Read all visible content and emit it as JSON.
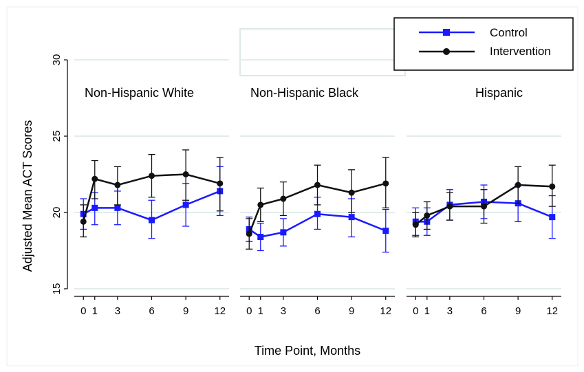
{
  "chart_data": {
    "type": "line",
    "ylabel": "Adjusted Mean ACT Scores",
    "xlabel": "Time Point, Months",
    "ylim": [
      15,
      30
    ],
    "yticks": [
      15,
      20,
      25,
      30
    ],
    "xticks": [
      0,
      1,
      3,
      6,
      9,
      12
    ],
    "xlim": [
      -0.8,
      12.8
    ],
    "grid": true,
    "legend": {
      "placement": "top-right",
      "entries": [
        "Control",
        "Intervention"
      ]
    },
    "colors": {
      "Control": "#1a1aff",
      "Intervention": "#111111"
    },
    "panels": [
      {
        "title": "Non-Hispanic White",
        "series": [
          {
            "name": "Control",
            "x": [
              0,
              1,
              3,
              6,
              9,
              12
            ],
            "values": [
              19.9,
              20.3,
              20.3,
              19.5,
              20.5,
              21.4
            ],
            "lower": [
              18.9,
              19.2,
              19.2,
              18.3,
              19.1,
              19.8
            ],
            "upper": [
              20.9,
              21.3,
              21.4,
              20.8,
              21.9,
              23.0
            ]
          },
          {
            "name": "Intervention",
            "x": [
              0,
              1,
              3,
              6,
              9,
              12
            ],
            "values": [
              19.4,
              22.2,
              21.8,
              22.4,
              22.5,
              21.9
            ],
            "lower": [
              18.4,
              20.9,
              20.5,
              21.0,
              20.8,
              20.1
            ],
            "upper": [
              20.5,
              23.4,
              23.0,
              23.8,
              24.1,
              23.6
            ]
          }
        ]
      },
      {
        "title": "Non-Hispanic Black",
        "series": [
          {
            "name": "Control",
            "x": [
              0,
              1,
              3,
              6,
              9,
              12
            ],
            "values": [
              18.9,
              18.4,
              18.7,
              19.9,
              19.7,
              18.8
            ],
            "lower": [
              18.1,
              17.5,
              17.8,
              18.9,
              18.4,
              17.4
            ],
            "upper": [
              19.7,
              19.3,
              19.6,
              21.0,
              20.9,
              20.2
            ]
          },
          {
            "name": "Intervention",
            "x": [
              0,
              1,
              3,
              6,
              9,
              12
            ],
            "values": [
              18.6,
              20.5,
              20.9,
              21.8,
              21.3,
              21.9
            ],
            "lower": [
              17.6,
              19.4,
              19.8,
              20.5,
              20.0,
              20.3
            ],
            "upper": [
              19.6,
              21.6,
              22.0,
              23.1,
              22.8,
              23.6
            ]
          }
        ]
      },
      {
        "title": "Hispanic",
        "series": [
          {
            "name": "Control",
            "x": [
              0,
              1,
              3,
              6,
              9,
              12
            ],
            "values": [
              19.4,
              19.4,
              20.5,
              20.7,
              20.6,
              19.7
            ],
            "lower": [
              18.5,
              18.5,
              19.5,
              19.6,
              19.4,
              18.3
            ],
            "upper": [
              20.3,
              20.3,
              21.5,
              21.8,
              21.8,
              21.1
            ]
          },
          {
            "name": "Intervention",
            "x": [
              0,
              1,
              3,
              6,
              9,
              12
            ],
            "values": [
              19.2,
              19.8,
              20.4,
              20.4,
              21.8,
              21.7
            ],
            "lower": [
              18.4,
              18.9,
              19.5,
              19.3,
              20.6,
              20.4
            ],
            "upper": [
              20.0,
              20.7,
              21.3,
              21.5,
              23.0,
              23.1
            ]
          }
        ]
      }
    ]
  }
}
